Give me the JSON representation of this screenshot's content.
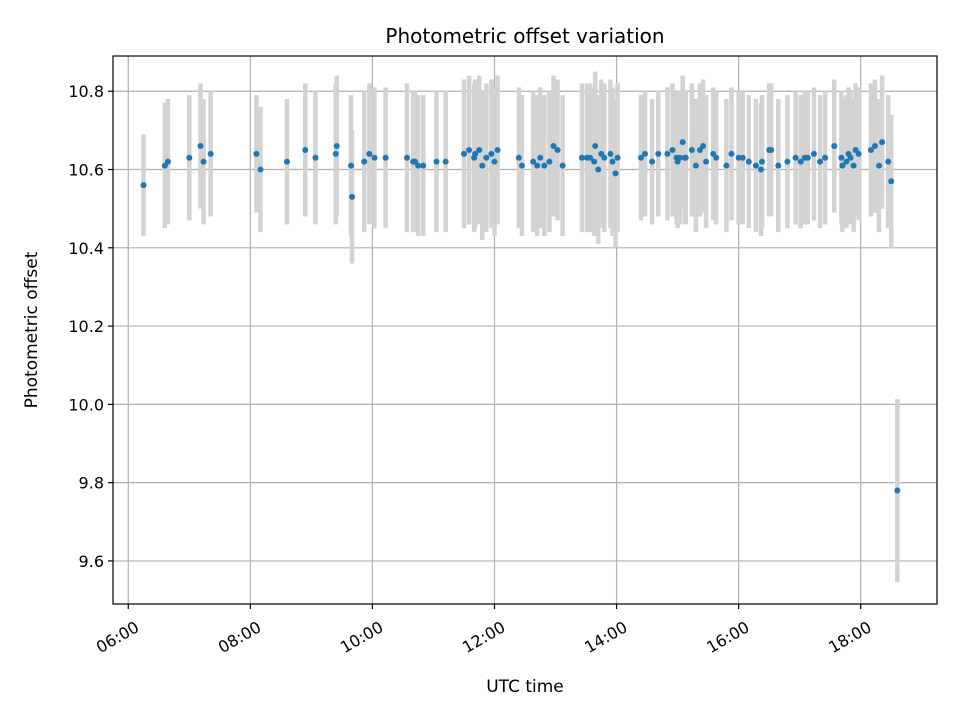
{
  "chart_data": {
    "type": "scatter",
    "title": "Photometric offset variation",
    "xlabel": "UTC time",
    "ylabel": "Photometric offset",
    "x_unit": "hours UTC",
    "xlim": [
      "05:45",
      "19:15"
    ],
    "ylim": [
      9.49,
      10.89
    ],
    "xticks": [
      "06:00",
      "08:00",
      "10:00",
      "12:00",
      "14:00",
      "16:00",
      "18:00"
    ],
    "yticks": [
      "9.6",
      "9.8",
      "10.0",
      "10.2",
      "10.4",
      "10.6",
      "10.8"
    ],
    "grid": true,
    "marker_color": "#1f77b4",
    "errorbar_color": "#d3d3d3",
    "series": [
      {
        "x": [
          "06:15",
          "06:36",
          "06:39",
          "07:00",
          "07:11",
          "07:14",
          "07:21",
          "08:06",
          "08:10",
          "08:36",
          "08:54",
          "09:04",
          "09:24",
          "09:25",
          "09:39",
          "09:40",
          "09:52",
          "09:57",
          "10:02",
          "10:13",
          "10:34",
          "10:40",
          "10:42",
          "10:45",
          "10:50",
          "11:03",
          "11:12",
          "11:30",
          "11:35",
          "11:40",
          "11:41",
          "11:45",
          "11:48",
          "11:52",
          "11:57",
          "12:00",
          "12:03",
          "12:24",
          "12:27",
          "12:38",
          "12:42",
          "12:45",
          "12:49",
          "12:54",
          "12:58",
          "13:02",
          "13:07",
          "13:26",
          "13:31",
          "13:34",
          "13:38",
          "13:39",
          "13:42",
          "13:45",
          "13:48",
          "13:54",
          "13:56",
          "13:59",
          "14:01",
          "14:24",
          "14:28",
          "14:35",
          "14:41",
          "14:50",
          "14:55",
          "14:59",
          "15:00",
          "15:02",
          "15:05",
          "15:07",
          "15:08",
          "15:14",
          "15:18",
          "15:22",
          "15:25",
          "15:28",
          "15:35",
          "15:38",
          "15:48",
          "15:53",
          "16:00",
          "16:04",
          "16:10",
          "16:17",
          "16:22",
          "16:23",
          "16:30",
          "16:32",
          "16:39",
          "16:48",
          "16:56",
          "17:01",
          "17:05",
          "17:08",
          "17:14",
          "17:20",
          "17:25",
          "17:34",
          "17:41",
          "17:42",
          "17:46",
          "17:48",
          "17:50",
          "17:53",
          "17:55",
          "17:58",
          "18:10",
          "18:14",
          "18:18",
          "18:21",
          "18:27",
          "18:30",
          "18:36"
        ],
        "y": [
          10.56,
          10.61,
          10.62,
          10.63,
          10.66,
          10.62,
          10.64,
          10.64,
          10.6,
          10.62,
          10.65,
          10.63,
          10.64,
          10.66,
          10.61,
          10.53,
          10.62,
          10.64,
          10.63,
          10.63,
          10.63,
          10.62,
          10.62,
          10.61,
          10.61,
          10.62,
          10.62,
          10.64,
          10.65,
          10.63,
          10.64,
          10.65,
          10.61,
          10.63,
          10.64,
          10.62,
          10.65,
          10.63,
          10.61,
          10.62,
          10.61,
          10.63,
          10.61,
          10.62,
          10.66,
          10.65,
          10.61,
          10.63,
          10.63,
          10.63,
          10.62,
          10.66,
          10.6,
          10.64,
          10.63,
          10.64,
          10.62,
          10.59,
          10.63,
          10.63,
          10.64,
          10.62,
          10.64,
          10.64,
          10.65,
          10.63,
          10.62,
          10.63,
          10.67,
          10.63,
          10.63,
          10.65,
          10.61,
          10.65,
          10.66,
          10.62,
          10.64,
          10.63,
          10.61,
          10.64,
          10.63,
          10.63,
          10.62,
          10.61,
          10.6,
          10.62,
          10.65,
          10.65,
          10.61,
          10.62,
          10.63,
          10.62,
          10.63,
          10.63,
          10.64,
          10.62,
          10.63,
          10.66,
          10.63,
          10.61,
          10.62,
          10.64,
          10.63,
          10.61,
          10.65,
          10.64,
          10.65,
          10.66,
          10.61,
          10.67,
          10.62,
          10.57,
          9.78
        ],
        "yerr": [
          0.13,
          0.16,
          0.16,
          0.16,
          0.16,
          0.16,
          0.16,
          0.15,
          0.16,
          0.16,
          0.17,
          0.17,
          0.18,
          0.18,
          0.18,
          0.17,
          0.18,
          0.18,
          0.18,
          0.18,
          0.19,
          0.18,
          0.18,
          0.18,
          0.18,
          0.18,
          0.18,
          0.19,
          0.19,
          0.19,
          0.19,
          0.19,
          0.19,
          0.19,
          0.19,
          0.19,
          0.19,
          0.18,
          0.18,
          0.18,
          0.18,
          0.18,
          0.18,
          0.18,
          0.18,
          0.18,
          0.18,
          0.19,
          0.19,
          0.19,
          0.19,
          0.19,
          0.19,
          0.19,
          0.19,
          0.19,
          0.19,
          0.19,
          0.19,
          0.16,
          0.16,
          0.16,
          0.16,
          0.17,
          0.17,
          0.17,
          0.17,
          0.17,
          0.17,
          0.17,
          0.17,
          0.17,
          0.17,
          0.17,
          0.17,
          0.17,
          0.17,
          0.17,
          0.17,
          0.17,
          0.17,
          0.17,
          0.17,
          0.17,
          0.17,
          0.17,
          0.17,
          0.17,
          0.17,
          0.17,
          0.17,
          0.17,
          0.17,
          0.17,
          0.17,
          0.17,
          0.17,
          0.17,
          0.17,
          0.17,
          0.17,
          0.17,
          0.17,
          0.17,
          0.17,
          0.17,
          0.17,
          0.17,
          0.17,
          0.17,
          0.17,
          0.17,
          0.2335
        ]
      }
    ]
  }
}
